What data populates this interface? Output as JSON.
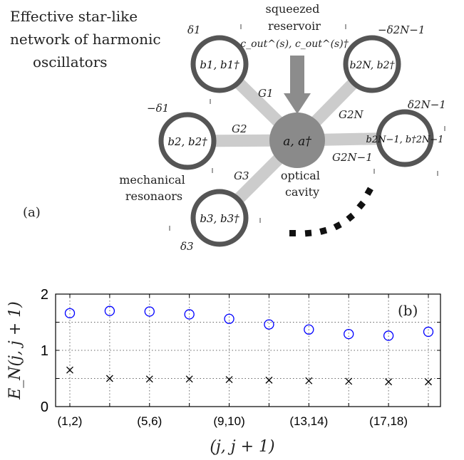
{
  "diagram": {
    "title_lines": [
      "Effective star-like",
      "network of harmonic",
      "oscillators"
    ],
    "reservoir_lines": [
      "squeezed",
      "reservoir"
    ],
    "reservoir_ops": "c_out^(s), c_out^(s)†",
    "cavity_label_lines": [
      "optical",
      "cavity"
    ],
    "cavity_op": "a, a†",
    "resonator_label_lines": [
      "mechanical",
      "resonaors"
    ],
    "panel_label": "(a)",
    "colors": {
      "ring": "#555555",
      "hub": "#8a8a8a",
      "spoke": "#cccccc",
      "arrow": "#8c8c8c"
    },
    "oscillators": [
      {
        "id": "b1",
        "ops": "b1, b1†",
        "detuning": "δ1",
        "coupling": "G1"
      },
      {
        "id": "b2",
        "ops": "b2, b2†",
        "detuning": "−δ1",
        "coupling": "G2"
      },
      {
        "id": "b3",
        "ops": "b3, b3†",
        "detuning": "δ3",
        "coupling": "G3"
      },
      {
        "id": "b2N",
        "ops": "b2N, b2†",
        "detuning": "−δ2N−1",
        "coupling": "G2N"
      },
      {
        "id": "b2N-1",
        "ops": "b2N−1, b†2N−1",
        "detuning": "δ2N−1",
        "coupling": "G2N−1"
      }
    ]
  },
  "chart_data": {
    "type": "scatter",
    "panel_label": "(b)",
    "xlabel": "(j, j + 1)",
    "ylabel": "E_N(j, j + 1)",
    "ylim": [
      0,
      2
    ],
    "yticks": [
      0,
      1,
      2
    ],
    "xticks": [
      "(1,2)",
      "(5,6)",
      "(9,10)",
      "(13,14)",
      "(17,18)"
    ],
    "x": [
      1,
      2,
      3,
      4,
      5,
      6,
      7,
      8,
      9,
      10
    ],
    "series": [
      {
        "marker": "circle",
        "color": "#0000ff",
        "values": [
          1.66,
          1.7,
          1.69,
          1.64,
          1.56,
          1.46,
          1.37,
          1.29,
          1.26,
          1.33
        ]
      },
      {
        "marker": "x",
        "color": "#000000",
        "values": [
          0.65,
          0.5,
          0.49,
          0.49,
          0.48,
          0.47,
          0.46,
          0.45,
          0.44,
          0.44
        ]
      }
    ],
    "grid": true
  }
}
